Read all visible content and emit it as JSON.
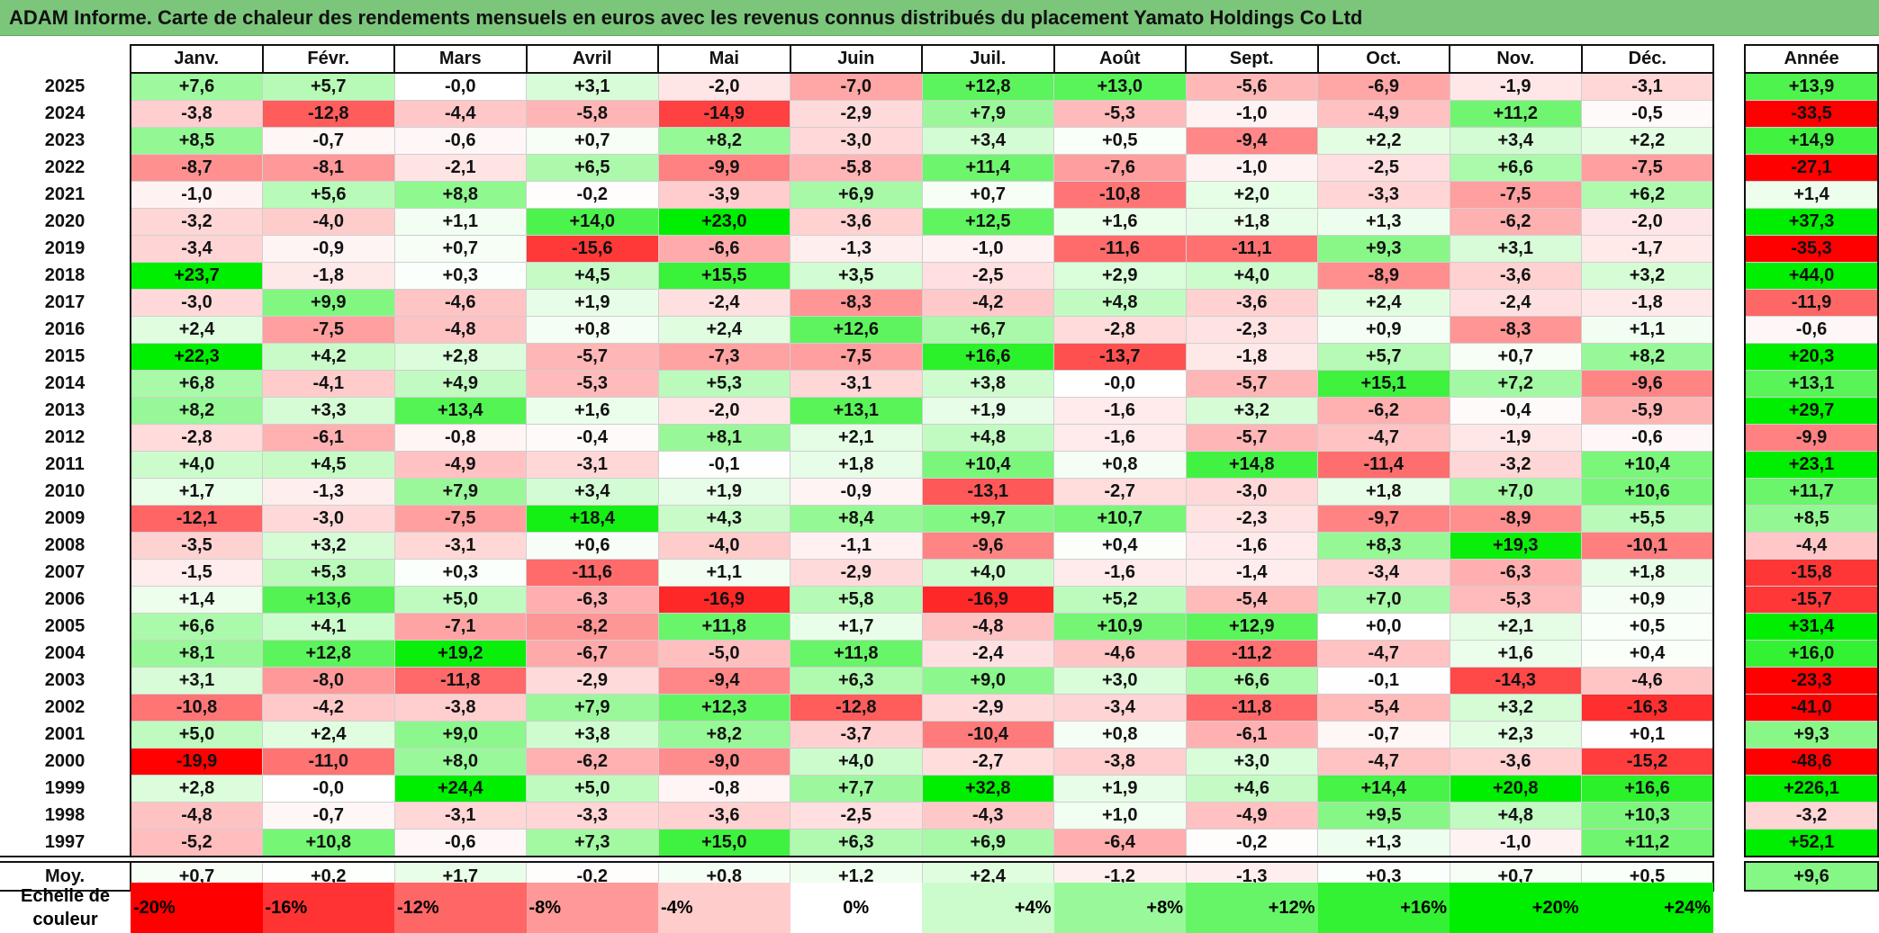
{
  "title": "ADAM Informe. Carte de chaleur des rendements mensuels en euros avec les revenus connus distribués du placement Yamato Holdings Co Ltd",
  "chart_data": {
    "type": "heatmap",
    "title": "ADAM Informe. Carte de chaleur des rendements mensuels en euros avec les revenus connus distribués du placement Yamato Holdings Co Ltd",
    "months": [
      "Janv.",
      "Févr.",
      "Mars",
      "Avril",
      "Mai",
      "Juin",
      "Juil.",
      "Août",
      "Sept.",
      "Oct.",
      "Nov.",
      "Déc."
    ],
    "year_header": "Année",
    "avg_label": "Moy.",
    "rows": [
      {
        "year": "2025",
        "values": [
          "+7,6",
          "+5,7",
          "-0,0",
          "+3,1",
          "-2,0",
          "-7,0",
          "+12,8",
          "+13,0",
          "-5,6",
          "-6,9",
          "-1,9",
          "-3,1"
        ],
        "annual": "+13,9"
      },
      {
        "year": "2024",
        "values": [
          "-3,8",
          "-12,8",
          "-4,4",
          "-5,8",
          "-14,9",
          "-2,9",
          "+7,9",
          "-5,3",
          "-1,0",
          "-4,9",
          "+11,2",
          "-0,5"
        ],
        "annual": "-33,5"
      },
      {
        "year": "2023",
        "values": [
          "+8,5",
          "-0,7",
          "-0,6",
          "+0,7",
          "+8,2",
          "-3,0",
          "+3,4",
          "+0,5",
          "-9,4",
          "+2,2",
          "+3,4",
          "+2,2"
        ],
        "annual": "+14,9"
      },
      {
        "year": "2022",
        "values": [
          "-8,7",
          "-8,1",
          "-2,1",
          "+6,5",
          "-9,9",
          "-5,8",
          "+11,4",
          "-7,6",
          "-1,0",
          "-2,5",
          "+6,6",
          "-7,5"
        ],
        "annual": "-27,1"
      },
      {
        "year": "2021",
        "values": [
          "-1,0",
          "+5,6",
          "+8,8",
          "-0,2",
          "-3,9",
          "+6,9",
          "+0,7",
          "-10,8",
          "+2,0",
          "-3,3",
          "-7,5",
          "+6,2"
        ],
        "annual": "+1,4"
      },
      {
        "year": "2020",
        "values": [
          "-3,2",
          "-4,0",
          "+1,1",
          "+14,0",
          "+23,0",
          "-3,6",
          "+12,5",
          "+1,6",
          "+1,8",
          "+1,3",
          "-6,2",
          "-2,0"
        ],
        "annual": "+37,3"
      },
      {
        "year": "2019",
        "values": [
          "-3,4",
          "-0,9",
          "+0,7",
          "-15,6",
          "-6,6",
          "-1,3",
          "-1,0",
          "-11,6",
          "-11,1",
          "+9,3",
          "+3,1",
          "-1,7"
        ],
        "annual": "-35,3"
      },
      {
        "year": "2018",
        "values": [
          "+23,7",
          "-1,8",
          "+0,3",
          "+4,5",
          "+15,5",
          "+3,5",
          "-2,5",
          "+2,9",
          "+4,0",
          "-8,9",
          "-3,6",
          "+3,2"
        ],
        "annual": "+44,0"
      },
      {
        "year": "2017",
        "values": [
          "-3,0",
          "+9,9",
          "-4,6",
          "+1,9",
          "-2,4",
          "-8,3",
          "-4,2",
          "+4,8",
          "-3,6",
          "+2,4",
          "-2,4",
          "-1,8"
        ],
        "annual": "-11,9"
      },
      {
        "year": "2016",
        "values": [
          "+2,4",
          "-7,5",
          "-4,8",
          "+0,8",
          "+2,4",
          "+12,6",
          "+6,7",
          "-2,8",
          "-2,3",
          "+0,9",
          "-8,3",
          "+1,1"
        ],
        "annual": "-0,6"
      },
      {
        "year": "2015",
        "values": [
          "+22,3",
          "+4,2",
          "+2,8",
          "-5,7",
          "-7,3",
          "-7,5",
          "+16,6",
          "-13,7",
          "-1,8",
          "+5,7",
          "+0,7",
          "+8,2"
        ],
        "annual": "+20,3"
      },
      {
        "year": "2014",
        "values": [
          "+6,8",
          "-4,1",
          "+4,9",
          "-5,3",
          "+5,3",
          "-3,1",
          "+3,8",
          "-0,0",
          "-5,7",
          "+15,1",
          "+7,2",
          "-9,6"
        ],
        "annual": "+13,1"
      },
      {
        "year": "2013",
        "values": [
          "+8,2",
          "+3,3",
          "+13,4",
          "+1,6",
          "-2,0",
          "+13,1",
          "+1,9",
          "-1,6",
          "+3,2",
          "-6,2",
          "-0,4",
          "-5,9"
        ],
        "annual": "+29,7"
      },
      {
        "year": "2012",
        "values": [
          "-2,8",
          "-6,1",
          "-0,8",
          "-0,4",
          "+8,1",
          "+2,1",
          "+4,8",
          "-1,6",
          "-5,7",
          "-4,7",
          "-1,9",
          "-0,6"
        ],
        "annual": "-9,9"
      },
      {
        "year": "2011",
        "values": [
          "+4,0",
          "+4,5",
          "-4,9",
          "-3,1",
          "-0,1",
          "+1,8",
          "+10,4",
          "+0,8",
          "+14,8",
          "-11,4",
          "-3,2",
          "+10,4"
        ],
        "annual": "+23,1"
      },
      {
        "year": "2010",
        "values": [
          "+1,7",
          "-1,3",
          "+7,9",
          "+3,4",
          "+1,9",
          "-0,9",
          "-13,1",
          "-2,7",
          "-3,0",
          "+1,8",
          "+7,0",
          "+10,6"
        ],
        "annual": "+11,7"
      },
      {
        "year": "2009",
        "values": [
          "-12,1",
          "-3,0",
          "-7,5",
          "+18,4",
          "+4,3",
          "+8,4",
          "+9,7",
          "+10,7",
          "-2,3",
          "-9,7",
          "-8,9",
          "+5,5"
        ],
        "annual": "+8,5"
      },
      {
        "year": "2008",
        "values": [
          "-3,5",
          "+3,2",
          "-3,1",
          "+0,6",
          "-4,0",
          "-1,1",
          "-9,6",
          "+0,4",
          "-1,6",
          "+8,3",
          "+19,3",
          "-10,1"
        ],
        "annual": "-4,4"
      },
      {
        "year": "2007",
        "values": [
          "-1,5",
          "+5,3",
          "+0,3",
          "-11,6",
          "+1,1",
          "-2,9",
          "+4,0",
          "-1,6",
          "-1,4",
          "-3,4",
          "-6,3",
          "+1,8"
        ],
        "annual": "-15,8"
      },
      {
        "year": "2006",
        "values": [
          "+1,4",
          "+13,6",
          "+5,0",
          "-6,3",
          "-16,9",
          "+5,8",
          "-16,9",
          "+5,2",
          "-5,4",
          "+7,0",
          "-5,3",
          "+0,9"
        ],
        "annual": "-15,7"
      },
      {
        "year": "2005",
        "values": [
          "+6,6",
          "+4,1",
          "-7,1",
          "-8,2",
          "+11,8",
          "+1,7",
          "-4,8",
          "+10,9",
          "+12,9",
          "+0,0",
          "+2,1",
          "+0,5"
        ],
        "annual": "+31,4"
      },
      {
        "year": "2004",
        "values": [
          "+8,1",
          "+12,8",
          "+19,2",
          "-6,7",
          "-5,0",
          "+11,8",
          "-2,4",
          "-4,6",
          "-11,2",
          "-4,7",
          "+1,6",
          "+0,4"
        ],
        "annual": "+16,0"
      },
      {
        "year": "2003",
        "values": [
          "+3,1",
          "-8,0",
          "-11,8",
          "-2,9",
          "-9,4",
          "+6,3",
          "+9,0",
          "+3,0",
          "+6,6",
          "-0,1",
          "-14,3",
          "-4,6"
        ],
        "annual": "-23,3"
      },
      {
        "year": "2002",
        "values": [
          "-10,8",
          "-4,2",
          "-3,8",
          "+7,9",
          "+12,3",
          "-12,8",
          "-2,9",
          "-3,4",
          "-11,8",
          "-5,4",
          "+3,2",
          "-16,3"
        ],
        "annual": "-41,0"
      },
      {
        "year": "2001",
        "values": [
          "+5,0",
          "+2,4",
          "+9,0",
          "+3,8",
          "+8,2",
          "-3,7",
          "-10,4",
          "+0,8",
          "-6,1",
          "-0,7",
          "+2,3",
          "+0,1"
        ],
        "annual": "+9,3"
      },
      {
        "year": "2000",
        "values": [
          "-19,9",
          "-11,0",
          "+8,0",
          "-6,2",
          "-9,0",
          "+4,0",
          "-2,7",
          "-3,8",
          "+3,0",
          "-4,7",
          "-3,6",
          "-15,2"
        ],
        "annual": "-48,6"
      },
      {
        "year": "1999",
        "values": [
          "+2,8",
          "-0,0",
          "+24,4",
          "+5,0",
          "-0,8",
          "+7,7",
          "+32,8",
          "+1,9",
          "+4,6",
          "+14,4",
          "+20,8",
          "+16,6"
        ],
        "annual": "+226,1"
      },
      {
        "year": "1998",
        "values": [
          "-4,8",
          "-0,7",
          "-3,1",
          "-3,3",
          "-3,6",
          "-2,5",
          "-4,3",
          "+1,0",
          "-4,9",
          "+9,5",
          "+4,8",
          "+10,3"
        ],
        "annual": "-3,2"
      },
      {
        "year": "1997",
        "values": [
          "-5,2",
          "+10,8",
          "-0,6",
          "+7,3",
          "+15,0",
          "+6,3",
          "+6,9",
          "-6,4",
          "-0,2",
          "+1,3",
          "-1,0",
          "+11,2"
        ],
        "annual": "+52,1"
      }
    ],
    "averages": [
      "+0,7",
      "+0,2",
      "+1,7",
      "-0,2",
      "+0,8",
      "+1,2",
      "+2,4",
      "-1,2",
      "-1,3",
      "+0,3",
      "+0,7",
      "+0,5"
    ],
    "average_annual": "+9,6",
    "scale_label": "Echelle de couleur",
    "scale": [
      "-20%",
      "-16%",
      "-12%",
      "-8%",
      "-4%",
      "0%",
      "+4%",
      "+8%",
      "+12%",
      "+16%",
      "+20%",
      "+24%"
    ],
    "colors": {
      "negative_max": "#ff0000",
      "neutral": "#ffffff",
      "positive_max": "#00ee00",
      "title_bar": "#7bc67b"
    }
  }
}
